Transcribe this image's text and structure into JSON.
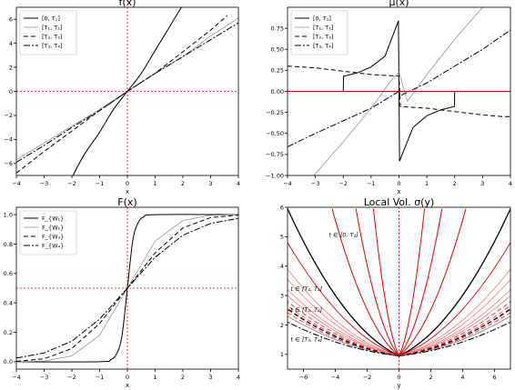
{
  "chart_data": [
    {
      "type": "line",
      "title": "f(x)",
      "xlabel": "x",
      "ylabel": "",
      "xlim": [
        -4,
        4
      ],
      "ylim": [
        -7,
        7
      ],
      "xticks": [
        -4,
        -3,
        -2,
        -1,
        0,
        1,
        2,
        3,
        4
      ],
      "yticks": [
        -6,
        -4,
        -2,
        0,
        2,
        4,
        6
      ],
      "legend_loc": "top-left",
      "grid": false,
      "series": [
        {
          "name": "[0, T₁]",
          "style": "solid",
          "color": "#000000",
          "x": [
            -4,
            -2,
            -1,
            -0.5,
            0,
            0.5,
            1,
            1.5,
            2
          ],
          "y": [
            -18,
            -7.2,
            -3.4,
            -1.5,
            0,
            1.5,
            3.4,
            5.3,
            7.2
          ]
        },
        {
          "name": "[T₁, T₂]",
          "style": "solid-thin",
          "color": "#888888",
          "x": [
            -4,
            -3,
            -2,
            -1,
            0,
            1,
            2,
            3,
            4
          ],
          "y": [
            -5.7,
            -4.3,
            -2.9,
            -1.5,
            0,
            1.5,
            2.9,
            4.6,
            6.1
          ]
        },
        {
          "name": "[T₂, T₃]",
          "style": "dashed",
          "color": "#000000",
          "x": [
            -4,
            -3,
            -2,
            -1,
            0,
            1,
            2,
            3,
            3.6
          ],
          "y": [
            -6.8,
            -5.0,
            -3.3,
            -1.6,
            0,
            1.5,
            3.3,
            5.1,
            6.3
          ]
        },
        {
          "name": "[T₃, T₄]",
          "style": "dashdot",
          "color": "#000000",
          "x": [
            -4,
            -3,
            -2,
            -1,
            0,
            1,
            2,
            3,
            4
          ],
          "y": [
            -5.9,
            -4.5,
            -3.0,
            -1.6,
            0,
            1.5,
            2.9,
            4.3,
            5.7
          ]
        }
      ]
    },
    {
      "type": "line",
      "title": "μ(x)",
      "xlabel": "x",
      "ylabel": "",
      "xlim": [
        -4,
        4
      ],
      "ylim": [
        -1.0,
        1.0
      ],
      "xticks": [
        -4,
        -3,
        -2,
        -1,
        0,
        1,
        2,
        3,
        4
      ],
      "yticks": [
        -1.0,
        -0.75,
        -0.5,
        -0.25,
        0.0,
        0.25,
        0.5,
        0.75
      ],
      "legend_loc": "top-left",
      "grid": false,
      "series": [
        {
          "name": "[0, T₁]",
          "style": "solid",
          "color": "#000000",
          "x": [
            -2,
            -1.99,
            -1.5,
            -1,
            -0.5,
            -0.02,
            0.02,
            0.5,
            1,
            1.5,
            1.99,
            2
          ],
          "y": [
            0.0,
            0.18,
            0.22,
            0.29,
            0.42,
            0.84,
            -0.83,
            -0.43,
            -0.29,
            -0.22,
            -0.18,
            0.0
          ]
        },
        {
          "name": "[T₁, T₂]",
          "style": "solid-thin",
          "color": "#888888",
          "x": [
            -4,
            -3,
            -2,
            -1,
            -0.3,
            0,
            0.3,
            1,
            2,
            3
          ],
          "y": [
            -1.4,
            -0.98,
            -0.6,
            -0.2,
            0.12,
            0.23,
            -0.12,
            0.2,
            0.62,
            1.0
          ]
        },
        {
          "name": "[T₂, T₃]",
          "style": "dashed",
          "color": "#000000",
          "x": [
            -4,
            -3,
            -2,
            -1,
            0,
            0.05,
            1,
            2,
            3,
            3.7,
            4
          ],
          "y": [
            0.3,
            0.28,
            0.24,
            0.2,
            0.18,
            -0.18,
            -0.2,
            -0.24,
            -0.28,
            -0.3,
            -0.3
          ]
        },
        {
          "name": "[T₃, T₄]",
          "style": "dashdot",
          "color": "#000000",
          "x": [
            -4,
            -3,
            -2,
            -1,
            0,
            0.05,
            1,
            2,
            3,
            4
          ],
          "y": [
            -0.66,
            -0.5,
            -0.35,
            -0.2,
            0.0,
            -0.05,
            0.1,
            0.3,
            0.5,
            0.73
          ]
        },
        {
          "name": "",
          "style": "solid",
          "color": "#cc0000",
          "x": [
            -4,
            4
          ],
          "y": [
            0,
            0
          ]
        }
      ]
    },
    {
      "type": "line",
      "title": "F(x)",
      "xlabel": "x",
      "ylabel": "",
      "xlim": [
        -4,
        4
      ],
      "ylim": [
        -0.05,
        1.05
      ],
      "xticks": [
        -4,
        -3,
        -2,
        -1,
        0,
        1,
        2,
        3,
        4
      ],
      "yticks": [
        0.0,
        0.2,
        0.4,
        0.6,
        0.8,
        1.0
      ],
      "legend_loc": "top-left",
      "grid": false,
      "series": [
        {
          "name": "F_{W₁}",
          "style": "solid",
          "color": "#000000",
          "x": [
            -4,
            -1,
            -0.6,
            -0.4,
            -0.2,
            0,
            0.2,
            0.4,
            0.6,
            1,
            4
          ],
          "y": [
            0.0,
            0.0,
            0.015,
            0.05,
            0.17,
            0.5,
            0.83,
            0.95,
            0.985,
            1.0,
            1.0
          ]
        },
        {
          "name": "F_{W₂}",
          "style": "solid-thin",
          "color": "#888888",
          "x": [
            -4,
            -3,
            -2,
            -1,
            0,
            1,
            2,
            3,
            4
          ],
          "y": [
            0.0,
            0.004,
            0.04,
            0.18,
            0.5,
            0.82,
            0.96,
            0.996,
            1.0
          ]
        },
        {
          "name": "F_{W₃}",
          "style": "dashed",
          "color": "#000000",
          "x": [
            -4,
            -3,
            -2,
            -1,
            0,
            1,
            2,
            3,
            4
          ],
          "y": [
            0.003,
            0.02,
            0.09,
            0.26,
            0.5,
            0.74,
            0.91,
            0.98,
            0.997
          ]
        },
        {
          "name": "F_{W₄}",
          "style": "dashdot",
          "color": "#000000",
          "x": [
            -4,
            -3,
            -2,
            -1,
            0,
            1,
            2,
            3,
            4
          ],
          "y": [
            0.025,
            0.06,
            0.14,
            0.29,
            0.5,
            0.71,
            0.86,
            0.94,
            0.975
          ]
        }
      ]
    },
    {
      "type": "line",
      "title": "Local Vol. σ(y)",
      "xlabel": "y",
      "ylabel": "",
      "xlim": [
        -7,
        7
      ],
      "ylim": [
        0.5,
        6.0
      ],
      "xticks": [
        -6,
        -4,
        -2,
        0,
        2,
        4,
        6
      ],
      "yticks": [
        1,
        2,
        3,
        4,
        5,
        6
      ],
      "legend_loc": "",
      "grid": false,
      "annotations": [
        {
          "text": "t ∈ [0, T₁]",
          "x": -4.4,
          "y": 5.0
        },
        {
          "text": "t ∈ [T₂, T₃]",
          "x": -6.8,
          "y": 3.15
        },
        {
          "text": "t ∈ [T₁, T₂]",
          "x": -6.8,
          "y": 2.45
        },
        {
          "text": "t ∈ [T₃, T₄]",
          "x": -6.8,
          "y": 1.45
        }
      ],
      "v_min": 0.95,
      "vertex_y": 0,
      "families": [
        {
          "style": "solid",
          "color": "#000000",
          "widths": [
            1.3
          ],
          "tops": [
            5.95
          ]
        },
        {
          "style": "solid",
          "color": "#dd0000",
          "widths": [
            1.0,
            1.0,
            1.0
          ],
          "tops": [
            5.95,
            5.95,
            5.95
          ],
          "half_widths": [
            1.6,
            2.7,
            4.2
          ]
        },
        {
          "style": "solid",
          "color": "#dd0000",
          "widths": [
            0.9
          ],
          "tops": [
            4.8
          ]
        },
        {
          "style": "solid",
          "color": "#ff6666",
          "widths": [
            0.7,
            0.7,
            0.7,
            0.7
          ],
          "tops": [
            3.9,
            3.55,
            3.2,
            3.0
          ]
        },
        {
          "style": "dashed",
          "color": "#dd0000",
          "widths": [
            0.7,
            0.7,
            0.7,
            0.7
          ],
          "tops": [
            2.8,
            2.65,
            2.52,
            2.42
          ]
        },
        {
          "style": "solid",
          "color": "#888888",
          "widths": [
            0.9
          ],
          "tops": [
            2.3
          ]
        },
        {
          "style": "dashed",
          "color": "#000000",
          "widths": [
            1.0
          ],
          "tops": [
            2.55
          ]
        },
        {
          "style": "dashdot",
          "color": "#000000",
          "widths": [
            1.0
          ],
          "tops": [
            2.1
          ]
        }
      ]
    }
  ]
}
